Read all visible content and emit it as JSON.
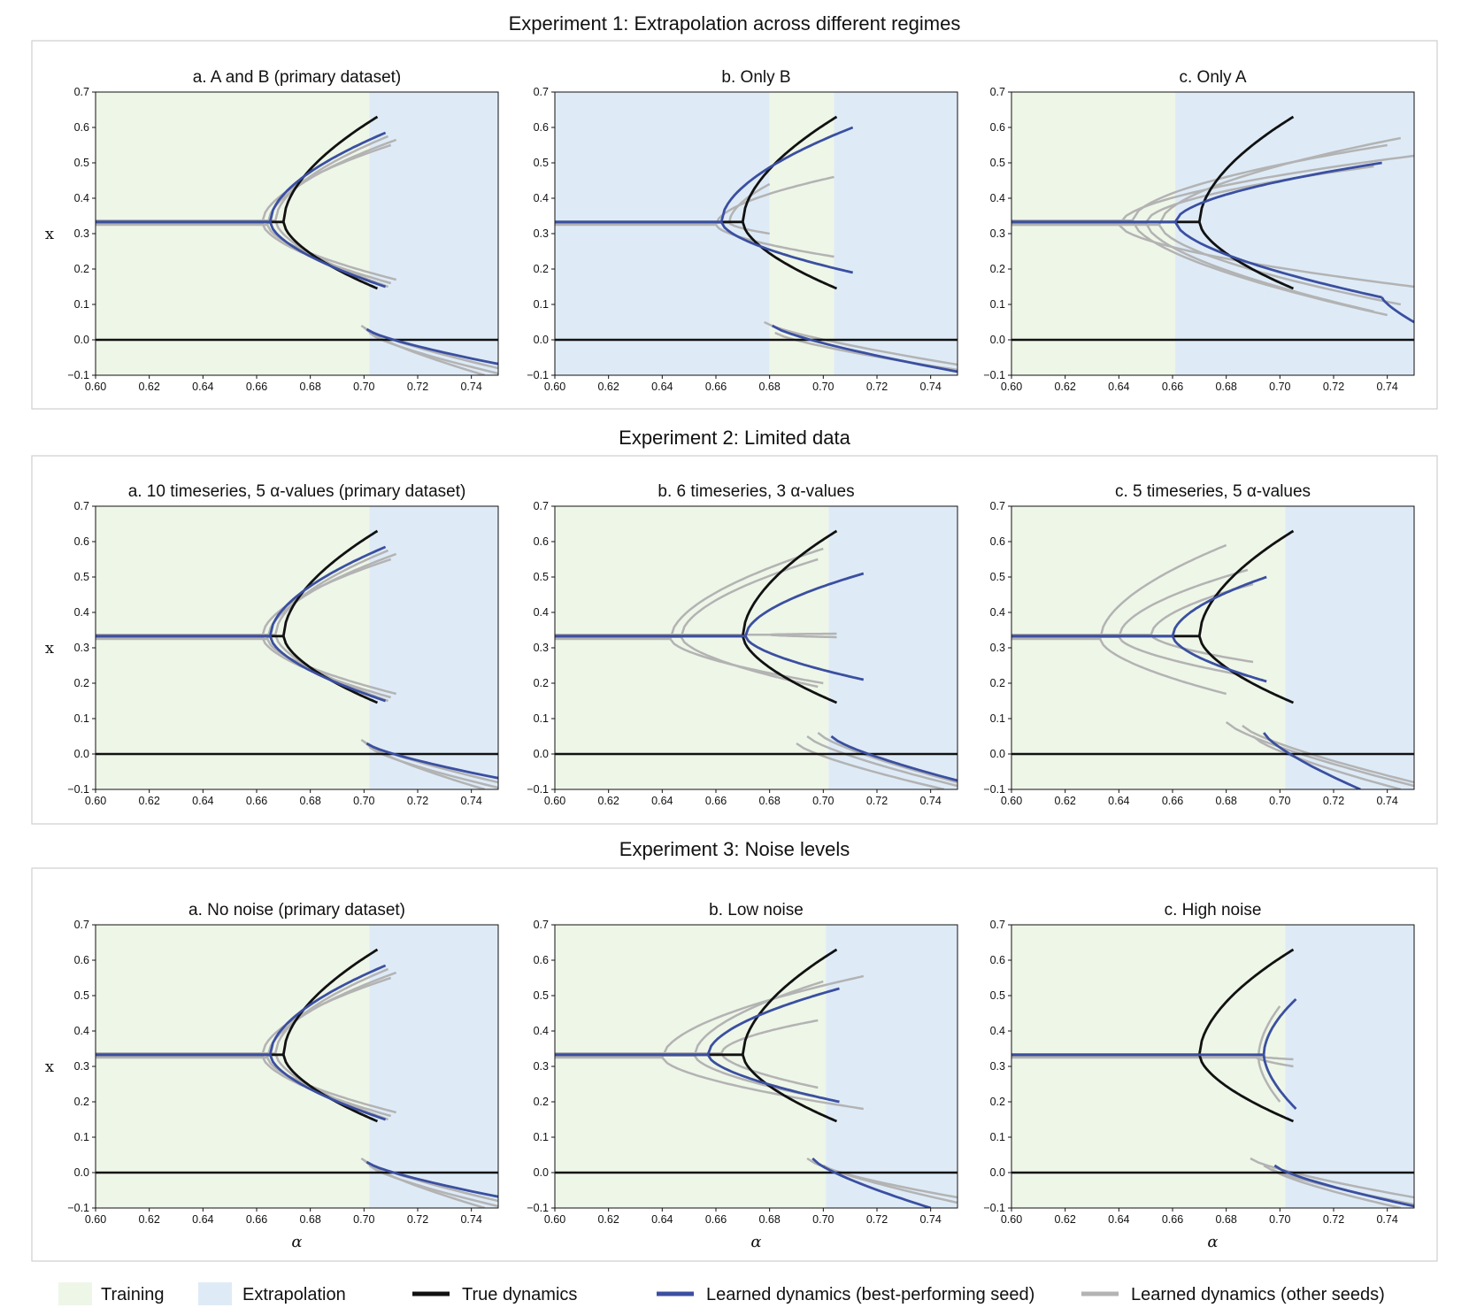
{
  "colors": {
    "training": "#eef6e8",
    "extrapolation": "#deebf7",
    "true": "#111111",
    "best": "#3b4fa0",
    "other": "#b3b3b3"
  },
  "experiments": [
    {
      "title": "Experiment 1: Extrapolation across different regimes"
    },
    {
      "title": "Experiment 2: Limited data"
    },
    {
      "title": "Experiment 3: Noise levels"
    }
  ],
  "axis": {
    "x_label": "α",
    "y_label": "x",
    "x_ticks": [
      "0.60",
      "0.62",
      "0.64",
      "0.66",
      "0.68",
      "0.70",
      "0.72",
      "0.74"
    ],
    "y_ticks": [
      "−0.1",
      "0.0",
      "0.1",
      "0.2",
      "0.3",
      "0.4",
      "0.5",
      "0.6",
      "0.7"
    ]
  },
  "legend": {
    "training": "Training",
    "extrapolation": "Extrapolation",
    "true": "True dynamics",
    "best": "Learned dynamics (best-performing seed)",
    "other": "Learned dynamics (other seeds)"
  },
  "chart_data": [
    {
      "type": "line",
      "title": "a. A and B (primary dataset)",
      "xlim": [
        0.6,
        0.75
      ],
      "ylim": [
        -0.1,
        0.7
      ],
      "xlabel": "",
      "ylabel": "x",
      "regions": [
        {
          "kind": "training",
          "from": 0.6,
          "to": 0.702
        },
        {
          "kind": "extrapolation",
          "from": 0.702,
          "to": 0.75
        }
      ],
      "true": {
        "bif": 0.67,
        "end": 0.705,
        "top": 0.63,
        "bot": 0.145
      },
      "best": {
        "bif": 0.665,
        "end": 0.708,
        "top": 0.585,
        "bot": 0.15,
        "neg": {
          "from": 0.701,
          "to": 0.75,
          "y0": 0.03,
          "y1": -0.068
        }
      },
      "others": [
        {
          "bif": 0.664,
          "end": 0.712,
          "top": 0.565,
          "bot": 0.17
        },
        {
          "bif": 0.662,
          "end": 0.71,
          "top": 0.55,
          "bot": 0.16
        },
        {
          "bif": 0.667,
          "end": 0.709,
          "top": 0.575,
          "bot": 0.15
        }
      ],
      "others_neg": [
        {
          "from": 0.699,
          "to": 0.75,
          "y0": 0.04,
          "y1": -0.08
        },
        {
          "from": 0.702,
          "to": 0.75,
          "y0": 0.02,
          "y1": -0.095
        },
        {
          "from": 0.7,
          "to": 0.745,
          "y0": 0.035,
          "y1": -0.1
        }
      ]
    },
    {
      "type": "line",
      "title": "b. Only B",
      "xlim": [
        0.6,
        0.75
      ],
      "ylim": [
        -0.1,
        0.7
      ],
      "xlabel": "",
      "ylabel": "",
      "regions": [
        {
          "kind": "extrapolation",
          "from": 0.6,
          "to": 0.68
        },
        {
          "kind": "training",
          "from": 0.68,
          "to": 0.704
        },
        {
          "kind": "extrapolation",
          "from": 0.704,
          "to": 0.75
        }
      ],
      "true": {
        "bif": 0.67,
        "end": 0.705,
        "top": 0.63,
        "bot": 0.145
      },
      "best": {
        "bif": 0.662,
        "end": 0.711,
        "top": 0.6,
        "bot": 0.19,
        "neg": {
          "from": 0.681,
          "to": 0.75,
          "y0": 0.04,
          "y1": -0.09
        }
      },
      "others": [
        {
          "bif": 0.66,
          "end": 0.704,
          "top": 0.46,
          "bot": 0.235
        },
        {
          "bif": 0.665,
          "end": 0.68,
          "top": 0.44,
          "bot": 0.3
        }
      ],
      "others_neg": [
        {
          "from": 0.678,
          "to": 0.75,
          "y0": 0.05,
          "y1": -0.07
        },
        {
          "from": 0.682,
          "to": 0.75,
          "y0": 0.02,
          "y1": -0.085
        }
      ]
    },
    {
      "type": "line",
      "title": "c. Only A",
      "xlim": [
        0.6,
        0.75
      ],
      "ylim": [
        -0.1,
        0.7
      ],
      "xlabel": "",
      "ylabel": "",
      "regions": [
        {
          "kind": "training",
          "from": 0.6,
          "to": 0.661
        },
        {
          "kind": "extrapolation",
          "from": 0.661,
          "to": 0.75
        }
      ],
      "true": {
        "bif": 0.67,
        "end": 0.705,
        "top": 0.63,
        "bot": 0.145
      },
      "best": {
        "bif": 0.661,
        "end": 0.738,
        "top": 0.5,
        "bot": 0.12,
        "neg": {
          "from": 0.738,
          "to": 0.75,
          "y0": 0.12,
          "y1": 0.05
        }
      },
      "others": [
        {
          "bif": 0.655,
          "end": 0.745,
          "top": 0.57,
          "bot": 0.1
        },
        {
          "bif": 0.65,
          "end": 0.735,
          "top": 0.49,
          "bot": 0.08
        },
        {
          "bif": 0.645,
          "end": 0.74,
          "top": 0.55,
          "bot": 0.07
        },
        {
          "bif": 0.64,
          "end": 0.75,
          "top": 0.52,
          "bot": 0.15
        }
      ],
      "others_neg": []
    },
    {
      "type": "line",
      "title": "a. 10 timeseries, 5 α-values (primary dataset)",
      "xlim": [
        0.6,
        0.75
      ],
      "ylim": [
        -0.1,
        0.7
      ],
      "xlabel": "",
      "ylabel": "x",
      "regions": [
        {
          "kind": "training",
          "from": 0.6,
          "to": 0.702
        },
        {
          "kind": "extrapolation",
          "from": 0.702,
          "to": 0.75
        }
      ],
      "true": {
        "bif": 0.67,
        "end": 0.705,
        "top": 0.63,
        "bot": 0.145
      },
      "best": {
        "bif": 0.665,
        "end": 0.708,
        "top": 0.585,
        "bot": 0.15,
        "neg": {
          "from": 0.701,
          "to": 0.75,
          "y0": 0.03,
          "y1": -0.068
        }
      },
      "others": [
        {
          "bif": 0.664,
          "end": 0.712,
          "top": 0.565,
          "bot": 0.17
        },
        {
          "bif": 0.662,
          "end": 0.71,
          "top": 0.55,
          "bot": 0.16
        },
        {
          "bif": 0.667,
          "end": 0.709,
          "top": 0.575,
          "bot": 0.15
        }
      ],
      "others_neg": [
        {
          "from": 0.699,
          "to": 0.75,
          "y0": 0.04,
          "y1": -0.08
        },
        {
          "from": 0.702,
          "to": 0.75,
          "y0": 0.02,
          "y1": -0.095
        },
        {
          "from": 0.7,
          "to": 0.745,
          "y0": 0.035,
          "y1": -0.1
        }
      ]
    },
    {
      "type": "line",
      "title": "b. 6 timeseries, 3 α-values",
      "xlim": [
        0.6,
        0.75
      ],
      "ylim": [
        -0.1,
        0.7
      ],
      "xlabel": "",
      "ylabel": "",
      "regions": [
        {
          "kind": "training",
          "from": 0.6,
          "to": 0.702
        },
        {
          "kind": "extrapolation",
          "from": 0.702,
          "to": 0.75
        }
      ],
      "true": {
        "bif": 0.67,
        "end": 0.705,
        "top": 0.63,
        "bot": 0.145
      },
      "best": {
        "bif": 0.671,
        "end": 0.715,
        "top": 0.51,
        "bot": 0.21,
        "neg": {
          "from": 0.703,
          "to": 0.75,
          "y0": 0.05,
          "y1": -0.075
        }
      },
      "others": [
        {
          "bif": 0.643,
          "end": 0.7,
          "top": 0.58,
          "bot": 0.2
        },
        {
          "bif": 0.647,
          "end": 0.698,
          "top": 0.55,
          "bot": 0.19
        },
        {
          "bif": 0.68,
          "end": 0.705,
          "top": 0.34,
          "bot": 0.33
        }
      ],
      "others_neg": [
        {
          "from": 0.69,
          "to": 0.745,
          "y0": 0.03,
          "y1": -0.1
        },
        {
          "from": 0.694,
          "to": 0.75,
          "y0": 0.05,
          "y1": -0.09
        },
        {
          "from": 0.698,
          "to": 0.75,
          "y0": 0.06,
          "y1": -0.08
        }
      ]
    },
    {
      "type": "line",
      "title": "c. 5 timeseries, 5 α-values",
      "xlim": [
        0.6,
        0.75
      ],
      "ylim": [
        -0.1,
        0.7
      ],
      "xlabel": "",
      "ylabel": "",
      "regions": [
        {
          "kind": "training",
          "from": 0.6,
          "to": 0.702
        },
        {
          "kind": "extrapolation",
          "from": 0.702,
          "to": 0.75
        }
      ],
      "true": {
        "bif": 0.67,
        "end": 0.705,
        "top": 0.63,
        "bot": 0.145
      },
      "best": {
        "bif": 0.66,
        "end": 0.695,
        "top": 0.5,
        "bot": 0.205,
        "neg": {
          "from": 0.694,
          "to": 0.73,
          "y0": 0.06,
          "y1": -0.1
        }
      },
      "others": [
        {
          "bif": 0.633,
          "end": 0.68,
          "top": 0.59,
          "bot": 0.17
        },
        {
          "bif": 0.64,
          "end": 0.688,
          "top": 0.52,
          "bot": 0.22
        },
        {
          "bif": 0.652,
          "end": 0.69,
          "top": 0.48,
          "bot": 0.26
        }
      ],
      "others_neg": [
        {
          "from": 0.68,
          "to": 0.75,
          "y0": 0.09,
          "y1": -0.09
        },
        {
          "from": 0.686,
          "to": 0.75,
          "y0": 0.08,
          "y1": -0.08
        },
        {
          "from": 0.69,
          "to": 0.745,
          "y0": 0.05,
          "y1": -0.1
        }
      ]
    },
    {
      "type": "line",
      "title": "a. No noise (primary dataset)",
      "xlim": [
        0.6,
        0.75
      ],
      "ylim": [
        -0.1,
        0.7
      ],
      "xlabel": "α",
      "ylabel": "x",
      "regions": [
        {
          "kind": "training",
          "from": 0.6,
          "to": 0.702
        },
        {
          "kind": "extrapolation",
          "from": 0.702,
          "to": 0.75
        }
      ],
      "true": {
        "bif": 0.67,
        "end": 0.705,
        "top": 0.63,
        "bot": 0.145
      },
      "best": {
        "bif": 0.665,
        "end": 0.708,
        "top": 0.585,
        "bot": 0.15,
        "neg": {
          "from": 0.701,
          "to": 0.75,
          "y0": 0.03,
          "y1": -0.068
        }
      },
      "others": [
        {
          "bif": 0.664,
          "end": 0.712,
          "top": 0.565,
          "bot": 0.17
        },
        {
          "bif": 0.662,
          "end": 0.71,
          "top": 0.55,
          "bot": 0.16
        },
        {
          "bif": 0.667,
          "end": 0.709,
          "top": 0.575,
          "bot": 0.15
        }
      ],
      "others_neg": [
        {
          "from": 0.699,
          "to": 0.75,
          "y0": 0.04,
          "y1": -0.08
        },
        {
          "from": 0.702,
          "to": 0.75,
          "y0": 0.02,
          "y1": -0.095
        },
        {
          "from": 0.7,
          "to": 0.745,
          "y0": 0.035,
          "y1": -0.1
        }
      ]
    },
    {
      "type": "line",
      "title": "b. Low noise",
      "xlim": [
        0.6,
        0.75
      ],
      "ylim": [
        -0.1,
        0.7
      ],
      "xlabel": "α",
      "ylabel": "",
      "regions": [
        {
          "kind": "training",
          "from": 0.6,
          "to": 0.701
        },
        {
          "kind": "extrapolation",
          "from": 0.701,
          "to": 0.75
        }
      ],
      "true": {
        "bif": 0.67,
        "end": 0.705,
        "top": 0.63,
        "bot": 0.145
      },
      "best": {
        "bif": 0.657,
        "end": 0.706,
        "top": 0.52,
        "bot": 0.2,
        "neg": {
          "from": 0.696,
          "to": 0.74,
          "y0": 0.04,
          "y1": -0.1
        }
      },
      "others": [
        {
          "bif": 0.64,
          "end": 0.715,
          "top": 0.555,
          "bot": 0.18
        },
        {
          "bif": 0.652,
          "end": 0.7,
          "top": 0.54,
          "bot": 0.21
        },
        {
          "bif": 0.662,
          "end": 0.698,
          "top": 0.43,
          "bot": 0.24
        }
      ],
      "others_neg": [
        {
          "from": 0.694,
          "to": 0.75,
          "y0": 0.04,
          "y1": -0.085
        },
        {
          "from": 0.7,
          "to": 0.75,
          "y0": 0.02,
          "y1": -0.07
        }
      ]
    },
    {
      "type": "line",
      "title": "c. High noise",
      "xlim": [
        0.6,
        0.75
      ],
      "ylim": [
        -0.1,
        0.7
      ],
      "xlabel": "α",
      "ylabel": "",
      "regions": [
        {
          "kind": "training",
          "from": 0.6,
          "to": 0.702
        },
        {
          "kind": "extrapolation",
          "from": 0.702,
          "to": 0.75
        }
      ],
      "true": {
        "bif": 0.67,
        "end": 0.705,
        "top": 0.63,
        "bot": 0.145
      },
      "best": {
        "bif": 0.694,
        "end": 0.706,
        "top": 0.49,
        "bot": 0.18,
        "neg": {
          "from": 0.698,
          "to": 0.75,
          "y0": 0.02,
          "y1": -0.095
        }
      },
      "others": [
        {
          "bif": 0.692,
          "end": 0.7,
          "top": 0.47,
          "bot": 0.2
        },
        {
          "bif": 0.69,
          "end": 0.705,
          "top": 0.32,
          "bot": 0.3
        }
      ],
      "others_neg": [
        {
          "from": 0.689,
          "to": 0.75,
          "y0": 0.04,
          "y1": -0.07
        },
        {
          "from": 0.694,
          "to": 0.75,
          "y0": 0.02,
          "y1": -0.09
        },
        {
          "from": 0.697,
          "to": 0.745,
          "y0": 0.01,
          "y1": -0.1
        }
      ]
    }
  ]
}
